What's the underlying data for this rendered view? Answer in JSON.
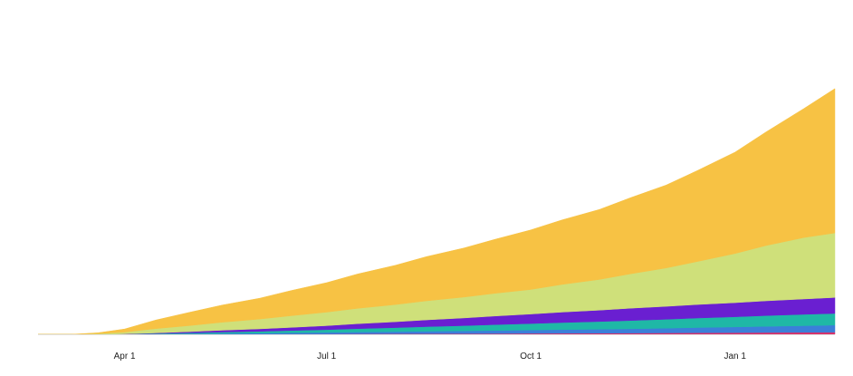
{
  "chart_data": {
    "type": "area",
    "stacked": true,
    "title": "",
    "xlabel": "",
    "ylabel": "",
    "x_axis": {
      "kind": "date",
      "range": [
        "2020-02-22",
        "2021-02-15"
      ],
      "ticks": [
        {
          "date": "2020-04-01",
          "label": "Apr 1"
        },
        {
          "date": "2020-07-01",
          "label": "Jul 1"
        },
        {
          "date": "2020-10-01",
          "label": "Oct 1"
        },
        {
          "date": "2021-01-01",
          "label": "Jan 1"
        }
      ]
    },
    "y_axis": {
      "shown": false,
      "range": [
        0,
        1
      ]
    },
    "grid": false,
    "legend": "none",
    "x": [
      "2020-02-22",
      "2020-03-08",
      "2020-03-20",
      "2020-04-01",
      "2020-04-15",
      "2020-05-01",
      "2020-05-15",
      "2020-06-01",
      "2020-06-15",
      "2020-07-01",
      "2020-07-15",
      "2020-08-01",
      "2020-08-15",
      "2020-09-01",
      "2020-09-15",
      "2020-10-01",
      "2020-10-15",
      "2020-11-01",
      "2020-11-15",
      "2020-12-01",
      "2020-12-15",
      "2021-01-01",
      "2021-01-15",
      "2021-02-01",
      "2021-02-15"
    ],
    "series": [
      {
        "color": "#d6336c",
        "values": [
          0,
          0,
          0,
          0,
          0.0002,
          0.0004,
          0.0006,
          0.0008,
          0.001,
          0.0012,
          0.0015,
          0.0018,
          0.002,
          0.0023,
          0.0026,
          0.003,
          0.0033,
          0.0037,
          0.004,
          0.0045,
          0.005,
          0.0055,
          0.006,
          0.0065,
          0.007
        ]
      },
      {
        "color": "#3b7fd9",
        "values": [
          0,
          0,
          0,
          0.0003,
          0.0008,
          0.0015,
          0.0022,
          0.003,
          0.004,
          0.005,
          0.006,
          0.007,
          0.008,
          0.009,
          0.01,
          0.011,
          0.012,
          0.013,
          0.014,
          0.0155,
          0.017,
          0.0185,
          0.02,
          0.0215,
          0.023
        ]
      },
      {
        "color": "#1fb8a6",
        "values": [
          0,
          0,
          0,
          0.0005,
          0.0015,
          0.003,
          0.0045,
          0.006,
          0.0075,
          0.009,
          0.011,
          0.013,
          0.015,
          0.017,
          0.019,
          0.021,
          0.023,
          0.025,
          0.027,
          0.029,
          0.031,
          0.033,
          0.035,
          0.037,
          0.038
        ]
      },
      {
        "color": "#6a1fd1",
        "values": [
          0,
          0,
          0,
          0.0005,
          0.002,
          0.004,
          0.006,
          0.008,
          0.01,
          0.013,
          0.016,
          0.019,
          0.022,
          0.025,
          0.028,
          0.031,
          0.034,
          0.037,
          0.04,
          0.042,
          0.044,
          0.046,
          0.048,
          0.05,
          0.052
        ]
      },
      {
        "color": "#cfe07a",
        "values": [
          0,
          0,
          0.002,
          0.006,
          0.014,
          0.02,
          0.026,
          0.032,
          0.038,
          0.044,
          0.05,
          0.056,
          0.062,
          0.068,
          0.074,
          0.08,
          0.09,
          0.1,
          0.112,
          0.125,
          0.14,
          0.16,
          0.18,
          0.2,
          0.21
        ]
      },
      {
        "color": "#f7c244",
        "values": [
          0,
          0,
          0.003,
          0.01,
          0.028,
          0.044,
          0.056,
          0.068,
          0.082,
          0.096,
          0.112,
          0.128,
          0.144,
          0.16,
          0.176,
          0.194,
          0.21,
          0.228,
          0.248,
          0.27,
          0.296,
          0.33,
          0.37,
          0.42,
          0.47
        ]
      }
    ]
  }
}
